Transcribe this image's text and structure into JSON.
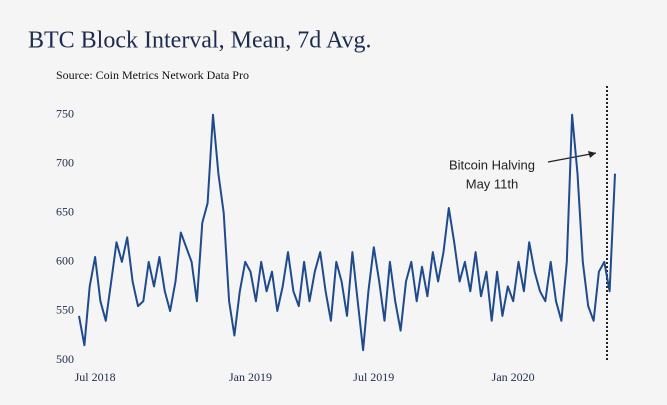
{
  "chart_data": {
    "type": "line",
    "title": "BTC Block Interval, Mean, 7d Avg.",
    "subtitle": "Source: Coin Metrics Network Data Pro",
    "annotation": [
      "Bitcoin Halving",
      "May 11th"
    ],
    "categories": [
      null,
      null,
      null,
      "Jul 2018",
      null,
      null,
      null,
      null,
      null,
      null,
      null,
      null,
      null,
      null,
      null,
      null,
      null,
      null,
      null,
      null,
      null,
      null,
      null,
      null,
      null,
      null,
      null,
      null,
      null,
      null,
      null,
      null,
      "Jan 2019",
      null,
      null,
      null,
      null,
      null,
      null,
      null,
      null,
      null,
      null,
      null,
      null,
      null,
      null,
      null,
      null,
      null,
      null,
      null,
      null,
      null,
      null,
      "Jul 2019",
      null,
      null,
      null,
      null,
      null,
      null,
      null,
      null,
      null,
      null,
      null,
      null,
      null,
      null,
      null,
      null,
      null,
      null,
      null,
      null,
      null,
      null,
      null,
      null,
      null,
      "Jan 2020",
      null,
      null,
      null,
      null,
      null,
      null,
      null,
      null,
      null,
      null,
      null,
      null,
      null,
      null,
      null,
      null,
      null,
      null,
      null
    ],
    "values": [
      545,
      515,
      575,
      605,
      560,
      540,
      580,
      620,
      600,
      625,
      580,
      555,
      560,
      600,
      575,
      605,
      570,
      550,
      580,
      630,
      615,
      600,
      560,
      640,
      660,
      750,
      690,
      650,
      560,
      525,
      570,
      600,
      590,
      560,
      600,
      570,
      590,
      550,
      575,
      610,
      570,
      555,
      600,
      560,
      590,
      610,
      570,
      540,
      600,
      580,
      545,
      610,
      560,
      510,
      570,
      615,
      580,
      540,
      600,
      560,
      530,
      580,
      600,
      560,
      595,
      565,
      610,
      580,
      610,
      655,
      620,
      580,
      600,
      570,
      610,
      565,
      590,
      540,
      590,
      545,
      575,
      560,
      600,
      570,
      620,
      590,
      570,
      560,
      600,
      560,
      540,
      600,
      750,
      690,
      600,
      555,
      540,
      590,
      600,
      570,
      690
    ],
    "color": "#1f4b8e",
    "ylim": [
      500,
      760
    ],
    "yticks": [
      500,
      550,
      600,
      650,
      700,
      750
    ],
    "grid": false
  }
}
